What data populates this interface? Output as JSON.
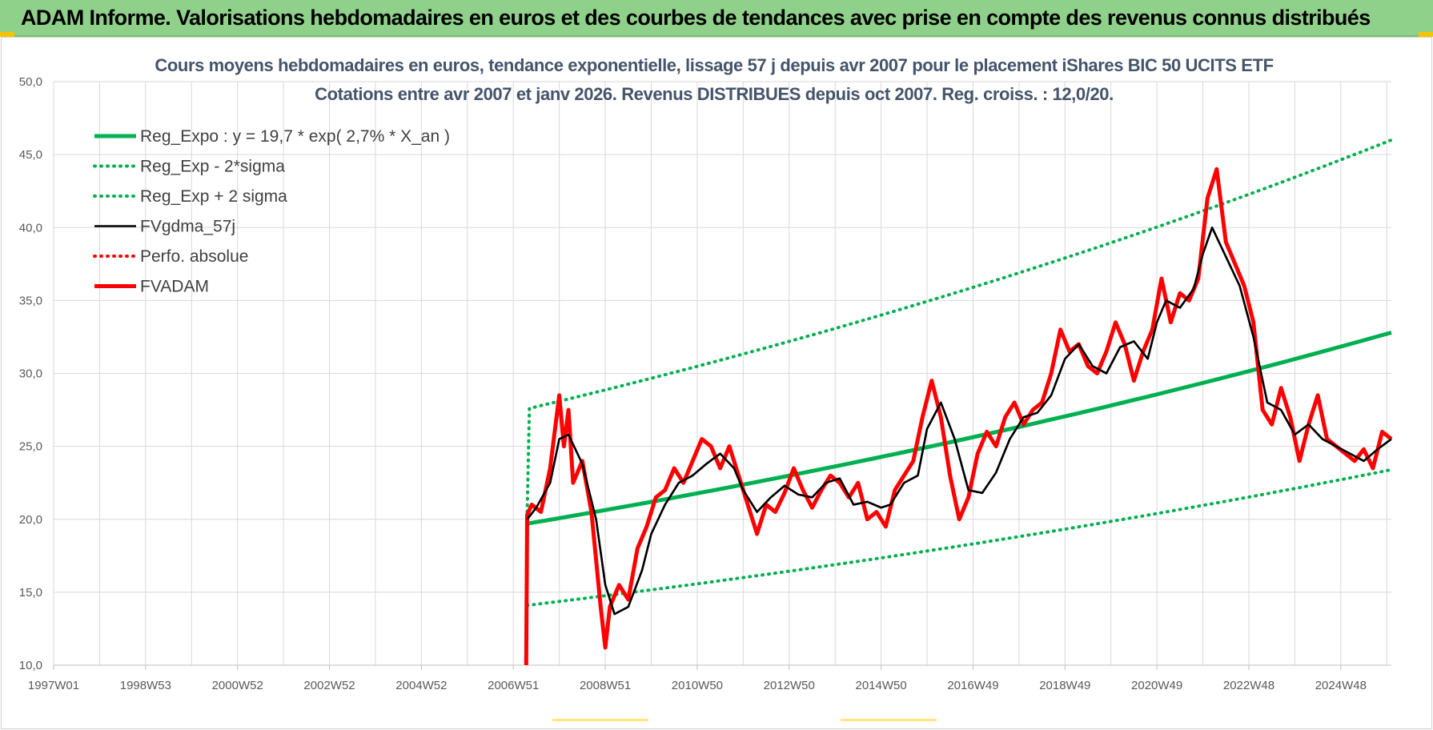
{
  "header": {
    "title": "ADAM Informe. Valorisations hebdomadaires en euros et des courbes de tendances avec prise en compte des revenus connus distribués"
  },
  "colors": {
    "header_bg": "#8fd18a",
    "green_series": "#00b050",
    "black_series": "#000000",
    "red_series": "#ff0000",
    "grid": "#d9d9d9"
  },
  "chart_data": {
    "type": "line",
    "title_lines": [
      "Cours moyens hebdomadaires en euros, tendance exponentielle, lissage 57 j depuis avr 2007 pour le placement iShares BIC 50 UCITS ETF",
      "Cotations entre avr 2007 et janv 2026.  Revenus DISTRIBUES depuis oct 2007. Reg. croiss. : 12,0/20."
    ],
    "ylim": [
      10,
      50
    ],
    "y_ticks": [
      "10,0",
      "15,0",
      "20,0",
      "25,0",
      "30,0",
      "35,0",
      "40,0",
      "45,0",
      "50,0"
    ],
    "x_range": [
      1997.0,
      2026.1
    ],
    "x_tick_labels": [
      "1997W01",
      "1998W53",
      "2000W52",
      "2002W52",
      "2004W52",
      "2006W51",
      "2008W51",
      "2010W50",
      "2012W50",
      "2014W50",
      "2016W49",
      "2018W49",
      "2020W49",
      "2022W48",
      "2024W48"
    ],
    "x_tick_positions": [
      1997.0,
      1999.0,
      2001.0,
      2003.0,
      2005.0,
      2007.0,
      2009.0,
      2011.0,
      2013.0,
      2015.0,
      2017.0,
      2019.0,
      2021.0,
      2023.0,
      2025.0
    ],
    "legend_position": "top-left",
    "grid": true,
    "series": [
      {
        "name": "Reg_Expo : y = 19,7 * exp( 2,7% *  X_an )",
        "style": "solid-thick",
        "color": "#00b050",
        "x": [
          2007.3,
          2026.1
        ],
        "y": [
          19.7,
          32.8
        ]
      },
      {
        "name": "Reg_Exp - 2*sigma",
        "style": "dotted",
        "color": "#00b050",
        "x": [
          2007.3,
          2026.1
        ],
        "y": [
          14.1,
          23.4
        ]
      },
      {
        "name": "Reg_Exp + 2 sigma",
        "style": "dotted",
        "color": "#00b050",
        "x": [
          2007.3,
          2007.35,
          2026.1
        ],
        "y": [
          20.5,
          27.6,
          46.0
        ]
      },
      {
        "name": "FVgdma_57j",
        "style": "solid",
        "color": "#000000",
        "x": [
          2007.3,
          2007.5,
          2007.8,
          2008.0,
          2008.2,
          2008.5,
          2008.8,
          2009.0,
          2009.2,
          2009.5,
          2009.8,
          2010.0,
          2010.3,
          2010.6,
          2010.9,
          2011.2,
          2011.5,
          2011.8,
          2012.0,
          2012.3,
          2012.6,
          2012.9,
          2013.2,
          2013.5,
          2013.8,
          2014.1,
          2014.4,
          2014.7,
          2015.0,
          2015.2,
          2015.5,
          2015.8,
          2016.0,
          2016.3,
          2016.6,
          2016.9,
          2017.2,
          2017.5,
          2017.8,
          2018.1,
          2018.4,
          2018.7,
          2019.0,
          2019.3,
          2019.6,
          2019.9,
          2020.2,
          2020.5,
          2020.8,
          2021.0,
          2021.2,
          2021.5,
          2021.8,
          2022.0,
          2022.2,
          2022.5,
          2022.8,
          2023.1,
          2023.4,
          2023.7,
          2024.0,
          2024.3,
          2024.6,
          2024.9,
          2025.2,
          2025.5,
          2025.8,
          2026.1
        ],
        "y": [
          20.0,
          20.8,
          22.5,
          25.5,
          25.8,
          23.8,
          20.0,
          15.5,
          13.5,
          14.0,
          16.5,
          19.0,
          21.0,
          22.5,
          23.0,
          23.8,
          24.5,
          23.5,
          22.0,
          20.5,
          21.5,
          22.3,
          21.7,
          21.5,
          22.5,
          22.8,
          21.0,
          21.2,
          20.8,
          21.0,
          22.5,
          23.0,
          26.2,
          28.0,
          25.5,
          22.0,
          21.8,
          23.2,
          25.5,
          27.0,
          27.3,
          28.5,
          31.0,
          32.0,
          30.5,
          30.0,
          31.8,
          32.2,
          31.0,
          33.5,
          35.0,
          34.5,
          35.8,
          38.2,
          40.0,
          38.0,
          36.0,
          32.5,
          28.0,
          27.5,
          25.8,
          26.5,
          25.5,
          25.0,
          24.5,
          24.0,
          24.8,
          25.5
        ]
      },
      {
        "name": "Perfo. absolue",
        "style": "dotted",
        "color": "#ff0000",
        "x": [],
        "y": []
      },
      {
        "name": "FVADAM",
        "style": "solid-thick",
        "color": "#ff0000",
        "x": [
          2007.28,
          2007.3,
          2007.4,
          2007.6,
          2007.8,
          2008.0,
          2008.1,
          2008.2,
          2008.3,
          2008.5,
          2008.7,
          2008.9,
          2009.0,
          2009.1,
          2009.3,
          2009.5,
          2009.7,
          2009.9,
          2010.1,
          2010.3,
          2010.5,
          2010.7,
          2010.9,
          2011.1,
          2011.3,
          2011.5,
          2011.7,
          2011.9,
          2012.1,
          2012.3,
          2012.5,
          2012.7,
          2012.9,
          2013.1,
          2013.3,
          2013.5,
          2013.7,
          2013.9,
          2014.1,
          2014.3,
          2014.5,
          2014.7,
          2014.9,
          2015.1,
          2015.3,
          2015.5,
          2015.7,
          2015.9,
          2016.1,
          2016.3,
          2016.5,
          2016.7,
          2016.9,
          2017.1,
          2017.3,
          2017.5,
          2017.7,
          2017.9,
          2018.1,
          2018.3,
          2018.5,
          2018.7,
          2018.9,
          2019.1,
          2019.3,
          2019.5,
          2019.7,
          2019.9,
          2020.1,
          2020.3,
          2020.5,
          2020.7,
          2020.9,
          2021.1,
          2021.3,
          2021.5,
          2021.7,
          2021.9,
          2022.1,
          2022.3,
          2022.5,
          2022.7,
          2022.9,
          2023.1,
          2023.3,
          2023.5,
          2023.7,
          2023.9,
          2024.1,
          2024.3,
          2024.5,
          2024.7,
          2024.9,
          2025.1,
          2025.3,
          2025.5,
          2025.7,
          2025.9,
          2026.1
        ],
        "y": [
          10.0,
          20.3,
          21.0,
          20.5,
          23.5,
          28.5,
          25.0,
          27.5,
          22.5,
          24.0,
          20.5,
          14.0,
          11.2,
          14.0,
          15.5,
          14.5,
          18.0,
          19.5,
          21.5,
          22.0,
          23.5,
          22.5,
          24.0,
          25.5,
          25.0,
          23.5,
          25.0,
          23.0,
          21.0,
          19.0,
          21.0,
          20.5,
          21.8,
          23.5,
          22.0,
          20.8,
          22.0,
          23.0,
          22.5,
          21.5,
          22.5,
          20.0,
          20.5,
          19.5,
          22.0,
          23.0,
          24.0,
          27.0,
          29.5,
          27.0,
          23.0,
          20.0,
          21.5,
          24.5,
          26.0,
          25.0,
          27.0,
          28.0,
          26.5,
          27.5,
          28.0,
          30.0,
          33.0,
          31.5,
          32.0,
          30.5,
          30.0,
          31.5,
          33.5,
          32.0,
          29.5,
          31.5,
          33.0,
          36.5,
          33.5,
          35.5,
          35.0,
          36.5,
          42.0,
          44.0,
          39.0,
          37.5,
          36.0,
          33.5,
          27.5,
          26.5,
          29.0,
          27.0,
          24.0,
          26.5,
          28.5,
          25.5,
          25.0,
          24.5,
          24.0,
          24.8,
          23.5,
          26.0,
          25.5
        ]
      }
    ]
  }
}
